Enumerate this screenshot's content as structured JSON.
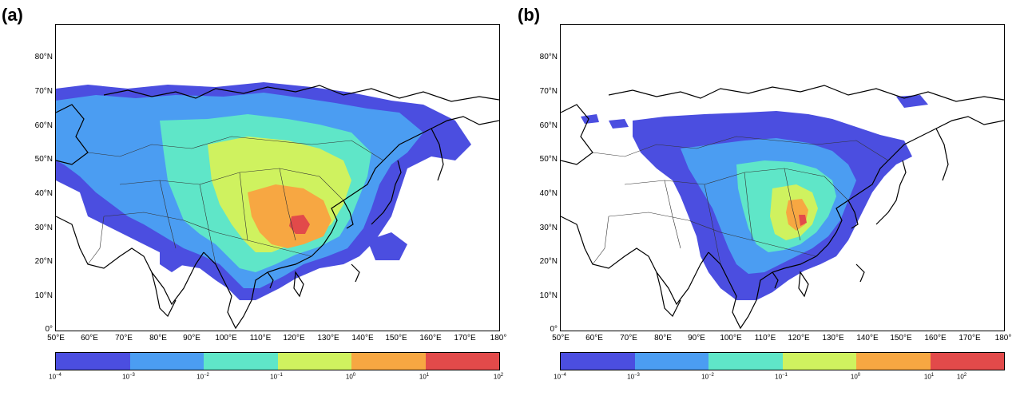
{
  "panels": [
    {
      "label": "(a)"
    },
    {
      "label": "(b)"
    }
  ],
  "lat_labels": [
    "80°N",
    "70°N",
    "60°N",
    "50°N",
    "40°N",
    "30°N",
    "20°N",
    "10°N",
    "0°"
  ],
  "lon_labels": [
    "50°E",
    "60°E",
    "70°E",
    "80°E",
    "90°E",
    "100°E",
    "110°E",
    "120°E",
    "130°E",
    "140°E",
    "150°E",
    "160°E",
    "170°E",
    "180°"
  ],
  "colorbar": {
    "colors": [
      "#4b4ee0",
      "#4b9df2",
      "#5fe6c8",
      "#cff25f",
      "#f7a742",
      "#e24a4a"
    ],
    "ticks": [
      {
        "base": "10",
        "exp": "−4"
      },
      {
        "base": "10",
        "exp": "−3"
      },
      {
        "base": "10",
        "exp": "−2"
      },
      {
        "base": "10",
        "exp": "−1"
      },
      {
        "base": "10",
        "exp": "0"
      },
      {
        "base": "10",
        "exp": "1"
      },
      {
        "base": "10",
        "exp": "2"
      }
    ]
  }
}
